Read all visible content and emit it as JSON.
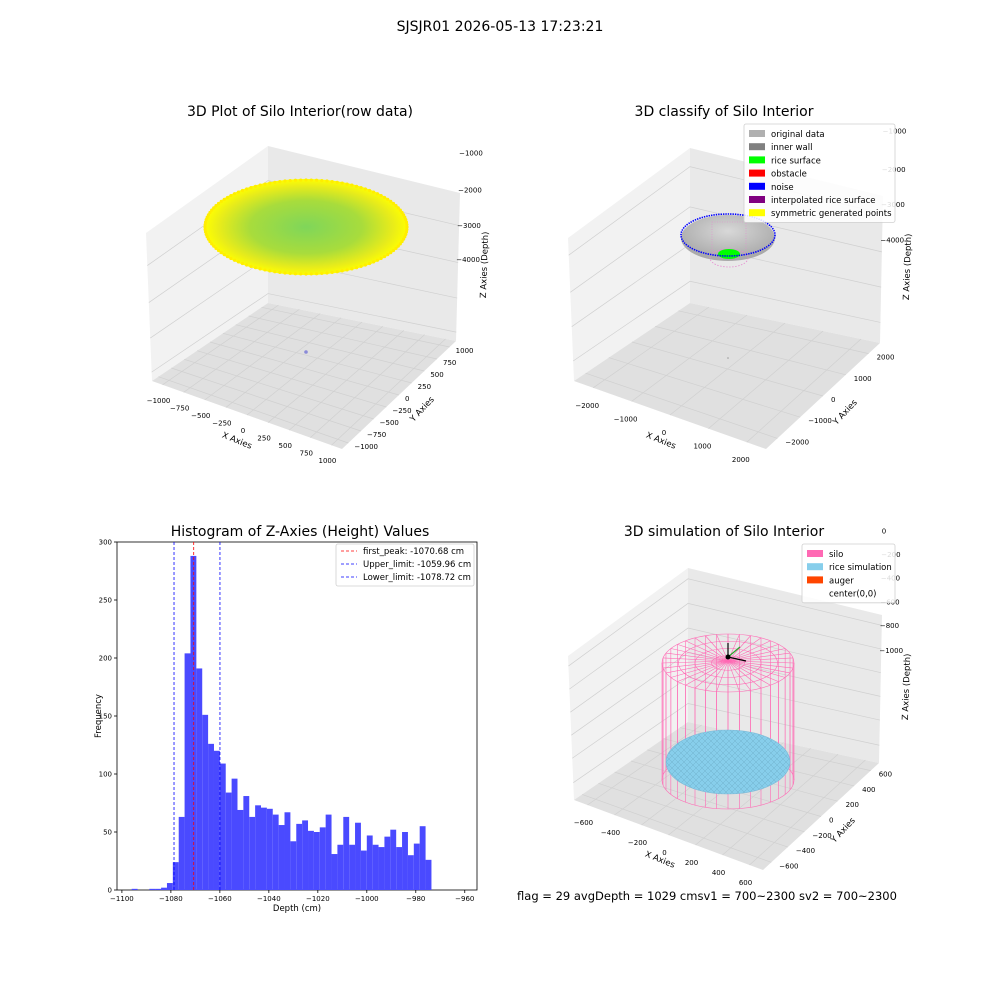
{
  "figure": {
    "suptitle": "SJSJR01 2026-05-13 17:23:21",
    "footer": "flag = 29  avgDepth = 1029 cmsv1 = 700~2300  sv2 = 700~2300"
  },
  "colors": {
    "hist_bar": "#4a4aff",
    "pane": "#f2f2f2",
    "grid": "#d6d6d6",
    "first_peak": "#ff0000",
    "limits": "#0000ff",
    "silo": "#ff69b4",
    "rice": "#87ceeb"
  },
  "panels": {
    "p1": {
      "title": "3D Plot of Silo Interior(row data)",
      "xlabel": "X Axies",
      "ylabel": "Y Axies",
      "zlabel": "Z Axies (Depth)",
      "xticks": [
        "−1000",
        "−750",
        "−500",
        "−250",
        "0",
        "250",
        "500",
        "750",
        "1000"
      ],
      "yticks": [
        "−1000",
        "−750",
        "−500",
        "−250",
        "0",
        "250",
        "500",
        "750",
        "1000"
      ],
      "zticks": [
        "−1000",
        "−2000",
        "−3000",
        "−4000"
      ],
      "point_colors": [
        "yellow",
        "green"
      ]
    },
    "p2": {
      "title": "3D classify of Silo Interior",
      "xlabel": "X Axies",
      "ylabel": "Y Axies",
      "zlabel": "Z Axies (Depth)",
      "xticks": [
        "−2000",
        "−1000",
        "0",
        "1000",
        "2000"
      ],
      "yticks": [
        "−2000",
        "−1000",
        "0",
        "1000",
        "2000"
      ],
      "zticks": [
        "−1000",
        "−2000",
        "−3000",
        "−4000"
      ],
      "legend": [
        {
          "label": "original data",
          "color": "#b0b0b0"
        },
        {
          "label": "inner wall",
          "color": "#808080"
        },
        {
          "label": "rice surface",
          "color": "#00ff00"
        },
        {
          "label": "obstacle",
          "color": "#ff0000"
        },
        {
          "label": "noise",
          "color": "#0000ff"
        },
        {
          "label": "interpolated rice surface",
          "color": "#800080"
        },
        {
          "label": "symmetric generated points",
          "color": "#ffff00"
        }
      ]
    },
    "p4": {
      "title": "3D simulation of Silo Interior",
      "xlabel": "X Axies",
      "ylabel": "Y Axies",
      "zlabel": "Z Axies (Depth)",
      "xticks": [
        "−600",
        "−400",
        "−200",
        "0",
        "200",
        "400",
        "600"
      ],
      "yticks": [
        "−600",
        "−400",
        "−200",
        "0",
        "200",
        "400",
        "600"
      ],
      "zticks": [
        "0",
        "−200",
        "−400",
        "−600",
        "−800",
        "−1000"
      ],
      "legend": [
        {
          "label": "silo",
          "color": "#ff69b4"
        },
        {
          "label": "rice simulation",
          "color": "#87ceeb"
        },
        {
          "label": "auger",
          "color": "#ff4500"
        },
        {
          "label": "center(0,0)",
          "color": ""
        }
      ]
    }
  },
  "chart_data": [
    {
      "type": "scatter",
      "panel": "p1",
      "title": "3D Plot of Silo Interior(row data)",
      "xlabel": "X Axies",
      "ylabel": "Y Axies",
      "zlabel": "Z Axies (Depth)",
      "xlim": [
        -1000,
        1000
      ],
      "ylim": [
        -1000,
        1000
      ],
      "zlim": [
        -4500,
        -1000
      ],
      "description_values": {
        "surface_radius": 1000,
        "surface_depth": -1000
      }
    },
    {
      "type": "scatter",
      "panel": "p2",
      "title": "3D classify of Silo Interior",
      "xlim": [
        -2000,
        2000
      ],
      "ylim": [
        -2000,
        2000
      ],
      "zlim": [
        -4500,
        -1000
      ],
      "series": [
        {
          "name": "original data"
        },
        {
          "name": "inner wall"
        },
        {
          "name": "rice surface"
        },
        {
          "name": "obstacle"
        },
        {
          "name": "noise"
        },
        {
          "name": "interpolated rice surface"
        },
        {
          "name": "symmetric generated points"
        }
      ]
    },
    {
      "type": "bar",
      "panel": "p3",
      "title": "Histogram of Z-Axies (Height) Values",
      "xlabel": "Depth (cm)",
      "ylabel": "Frequency",
      "xlim": [
        -1102,
        -955
      ],
      "ylim": [
        0,
        300
      ],
      "xticks": [
        -1100,
        -1080,
        -1060,
        -1040,
        -1020,
        -1000,
        -980,
        -960
      ],
      "yticks": [
        0,
        50,
        100,
        150,
        200,
        250,
        300
      ],
      "bin_start": -1096,
      "bin_width": 2.4,
      "values": [
        1,
        0,
        0,
        1,
        1,
        2,
        6,
        24,
        63,
        204,
        288,
        191,
        151,
        126,
        120,
        109,
        84,
        96,
        69,
        81,
        63,
        73,
        71,
        70,
        65,
        56,
        67,
        42,
        57,
        60,
        51,
        50,
        54,
        65,
        31,
        39,
        63,
        39,
        58,
        34,
        47,
        39,
        37,
        46,
        52,
        37,
        50,
        30,
        40,
        55,
        26
      ],
      "lines": [
        {
          "name": "first_peak: -1070.68 cm",
          "x": -1070.68,
          "color": "#ff0000"
        },
        {
          "name": "Upper_limit: -1059.96 cm",
          "x": -1059.96,
          "color": "#0000ff"
        },
        {
          "name": "Lower_limit: -1078.72 cm",
          "x": -1078.72,
          "color": "#0000ff"
        }
      ],
      "legend_placement": "top-right"
    },
    {
      "type": "scatter",
      "panel": "p4",
      "title": "3D simulation of Silo Interior",
      "xlim": [
        -600,
        600
      ],
      "ylim": [
        -600,
        600
      ],
      "zlim": [
        -1100,
        100
      ],
      "series": [
        {
          "name": "silo"
        },
        {
          "name": "rice simulation"
        },
        {
          "name": "auger"
        },
        {
          "name": "center(0,0)"
        }
      ]
    }
  ]
}
